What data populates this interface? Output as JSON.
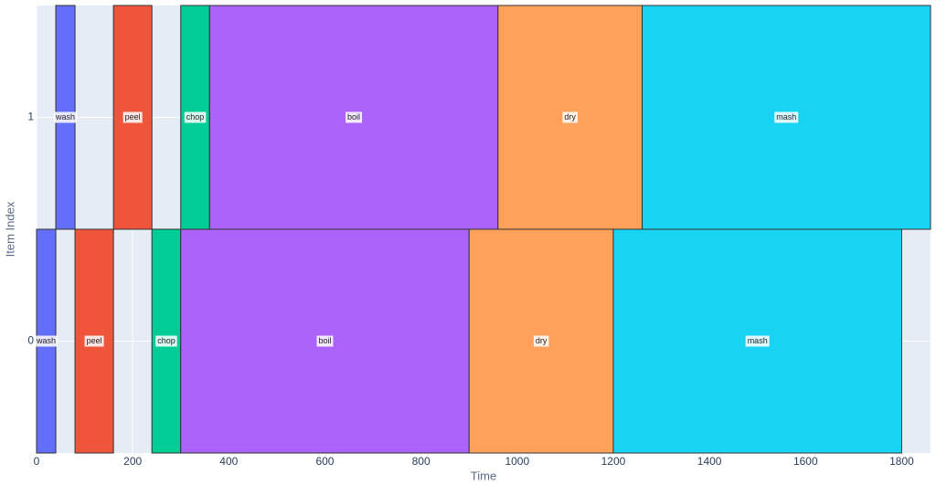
{
  "chart_data": {
    "type": "gantt",
    "x_label": "Time",
    "y_label": "Item Index",
    "xlim": [
      0,
      1860
    ],
    "xticks": [
      0,
      200,
      400,
      600,
      800,
      1000,
      1200,
      1400,
      1600,
      1800
    ],
    "ylim": [
      -0.5,
      1.5
    ],
    "yticks": [
      0,
      1
    ],
    "grid": true,
    "series": [
      {
        "name": "wash",
        "color": "#636efa",
        "item": [
          0,
          1
        ],
        "start": [
          0,
          40
        ],
        "end": [
          40,
          80
        ]
      },
      {
        "name": "peel",
        "color": "#ef553b",
        "item": [
          0,
          1
        ],
        "start": [
          80,
          160
        ],
        "end": [
          160,
          240
        ]
      },
      {
        "name": "chop",
        "color": "#00cc96",
        "item": [
          0,
          1
        ],
        "start": [
          240,
          300
        ],
        "end": [
          300,
          360
        ]
      },
      {
        "name": "boil",
        "color": "#ab63fa",
        "item": [
          0,
          1
        ],
        "start": [
          300,
          360
        ],
        "end": [
          900,
          960
        ]
      },
      {
        "name": "dry",
        "color": "#ffa15a",
        "item": [
          0,
          1
        ],
        "start": [
          900,
          960
        ],
        "end": [
          1200,
          1260
        ]
      },
      {
        "name": "mash",
        "color": "#19d3f3",
        "item": [
          0,
          1
        ],
        "start": [
          1200,
          1260
        ],
        "end": [
          1800,
          1860
        ]
      }
    ]
  }
}
